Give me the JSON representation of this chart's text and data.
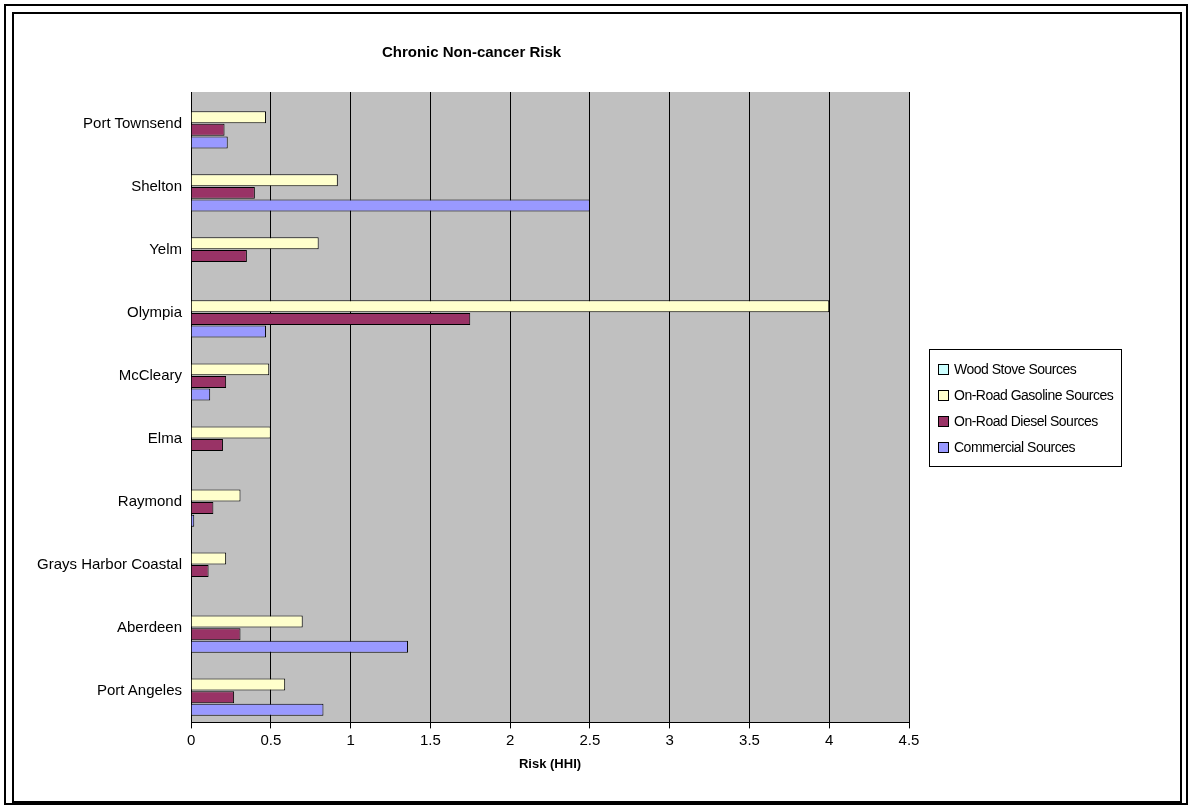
{
  "chart_data": {
    "type": "bar",
    "orientation": "horizontal",
    "title": "Chronic Non-cancer Risk",
    "xlabel": "Risk (HHI)",
    "categories": [
      "Port Townsend",
      "Shelton",
      "Yelm",
      "Olympia",
      "McCleary",
      "Elma",
      "Raymond",
      "Grays Harbor Coastal",
      "Aberdeen",
      "Port Angeles"
    ],
    "series": [
      {
        "name": "Wood Stove Sources",
        "color": "#ccffff",
        "values": [
          null,
          null,
          null,
          null,
          null,
          null,
          null,
          null,
          null,
          null
        ]
      },
      {
        "name": "On-Road Gasoline Sources",
        "color": "#ffffcc",
        "values": [
          0.47,
          0.92,
          0.8,
          4.0,
          0.49,
          0.5,
          0.31,
          0.22,
          0.7,
          0.59
        ]
      },
      {
        "name": "On-Road Diesel Sources",
        "color": "#993366",
        "values": [
          0.21,
          0.4,
          0.35,
          1.75,
          0.22,
          0.2,
          0.14,
          0.11,
          0.31,
          0.27
        ]
      },
      {
        "name": "Commercial Sources",
        "color": "#9999ff",
        "values": [
          0.23,
          2.5,
          null,
          0.47,
          0.12,
          null,
          0.02,
          null,
          1.36,
          0.83
        ]
      }
    ],
    "xlim": [
      0,
      4.5
    ],
    "xticks": [
      0,
      0.5,
      1,
      1.5,
      2,
      2.5,
      3,
      3.5,
      4,
      4.5
    ],
    "grid": "x",
    "legend": "right"
  }
}
